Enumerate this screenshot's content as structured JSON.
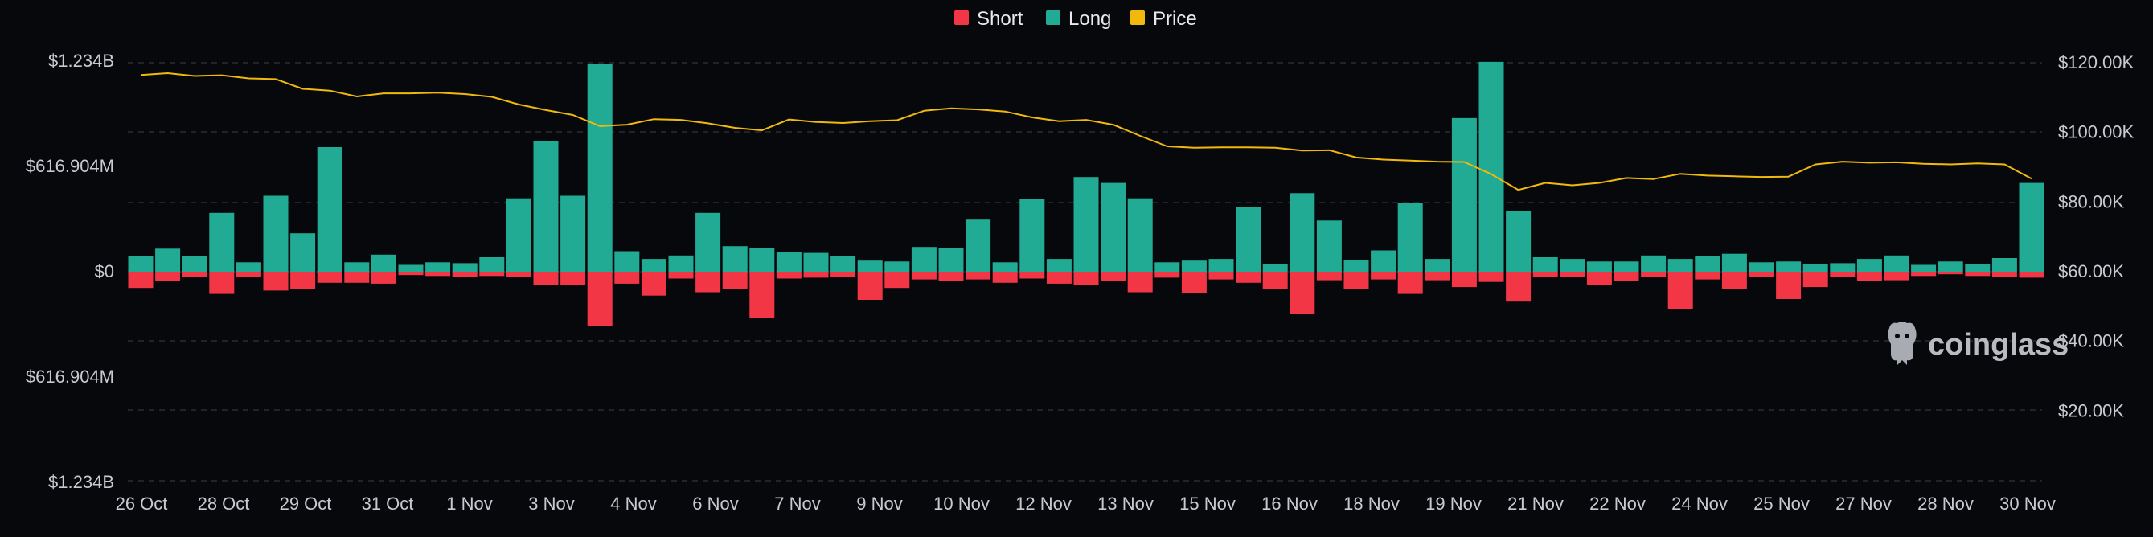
{
  "chart_data": {
    "type": "bar",
    "legend": [
      {
        "name": "Short",
        "color": "#f23645"
      },
      {
        "name": "Long",
        "color": "#22ab94"
      },
      {
        "name": "Price",
        "color": "#f0b90b"
      }
    ],
    "left_axis": {
      "ticks": [
        {
          "value": 1234000000,
          "label": "$1.234B"
        },
        {
          "value": 616904000,
          "label": "$616.904M"
        },
        {
          "value": 0,
          "label": "$0"
        },
        {
          "value": -616904000,
          "label": "$616.904M"
        },
        {
          "value": -1234000000,
          "label": "$1.234B"
        }
      ],
      "ylim": [
        -1234000000,
        1234000000
      ]
    },
    "right_axis": {
      "ticks": [
        {
          "value": 120000,
          "label": "$120.00K"
        },
        {
          "value": 100000,
          "label": "$100.00K"
        },
        {
          "value": 80000,
          "label": "$80.00K"
        },
        {
          "value": 60000,
          "label": "$60.00K"
        },
        {
          "value": 40000,
          "label": "$40.00K"
        },
        {
          "value": 20000,
          "label": "$20.00K"
        }
      ],
      "ylim": [
        0,
        120000
      ]
    },
    "x_tick_labels": [
      "26 Oct",
      "28 Oct",
      "29 Oct",
      "31 Oct",
      "1 Nov",
      "3 Nov",
      "4 Nov",
      "6 Nov",
      "7 Nov",
      "9 Nov",
      "10 Nov",
      "12 Nov",
      "13 Nov",
      "15 Nov",
      "16 Nov",
      "18 Nov",
      "19 Nov",
      "21 Nov",
      "22 Nov",
      "24 Nov",
      "25 Nov",
      "27 Nov",
      "28 Nov",
      "30 Nov"
    ],
    "series": [
      {
        "name": "Long",
        "values": [
          90,
          135,
          90,
          345,
          55,
          445,
          225,
          730,
          55,
          100,
          40,
          55,
          50,
          85,
          430,
          765,
          445,
          1220,
          120,
          75,
          95,
          345,
          150,
          140,
          115,
          110,
          90,
          65,
          60,
          145,
          140,
          305,
          55,
          425,
          75,
          555,
          520,
          430,
          55,
          65,
          75,
          380,
          45,
          460,
          300,
          70,
          125,
          405,
          75,
          900,
          1230,
          355,
          85,
          75,
          60,
          60,
          95,
          75,
          90,
          105,
          55,
          60,
          45,
          50,
          75,
          95,
          40,
          60,
          45,
          80,
          520
        ]
      },
      {
        "name": "Short",
        "values": [
          -95,
          -55,
          -30,
          -130,
          -30,
          -110,
          -100,
          -65,
          -65,
          -70,
          -20,
          -25,
          -30,
          -25,
          -30,
          -80,
          -80,
          -320,
          -70,
          -140,
          -40,
          -120,
          -100,
          -270,
          -40,
          -35,
          -30,
          -165,
          -95,
          -45,
          -55,
          -45,
          -65,
          -40,
          -70,
          -80,
          -55,
          -120,
          -35,
          -125,
          -45,
          -65,
          -100,
          -245,
          -50,
          -100,
          -45,
          -130,
          -50,
          -90,
          -60,
          -175,
          -30,
          -30,
          -80,
          -55,
          -30,
          -220,
          -45,
          -100,
          -30,
          -160,
          -90,
          -30,
          -55,
          -50,
          -25,
          -15,
          -25,
          -30,
          -35
        ]
      },
      {
        "name": "Price",
        "values": [
          116500,
          117000,
          116200,
          116400,
          115500,
          115300,
          112500,
          112000,
          110300,
          111200,
          111200,
          111400,
          111000,
          110200,
          108000,
          106400,
          105000,
          101800,
          102200,
          103800,
          103600,
          102600,
          101300,
          100600,
          103700,
          103000,
          102700,
          103200,
          103500,
          106200,
          106900,
          106600,
          106000,
          104300,
          103200,
          103600,
          102200,
          99000,
          96000,
          95600,
          95700,
          95700,
          95600,
          94800,
          94900,
          92800,
          92200,
          91900,
          91600,
          91500,
          88000,
          83500,
          85500,
          84800,
          85500,
          86900,
          86600,
          88100,
          87600,
          87400,
          87200,
          87300,
          90800,
          91600,
          91300,
          91400,
          91000,
          90800,
          91100,
          90800,
          86700
        ]
      }
    ]
  },
  "watermark": {
    "text": "coinglass"
  }
}
